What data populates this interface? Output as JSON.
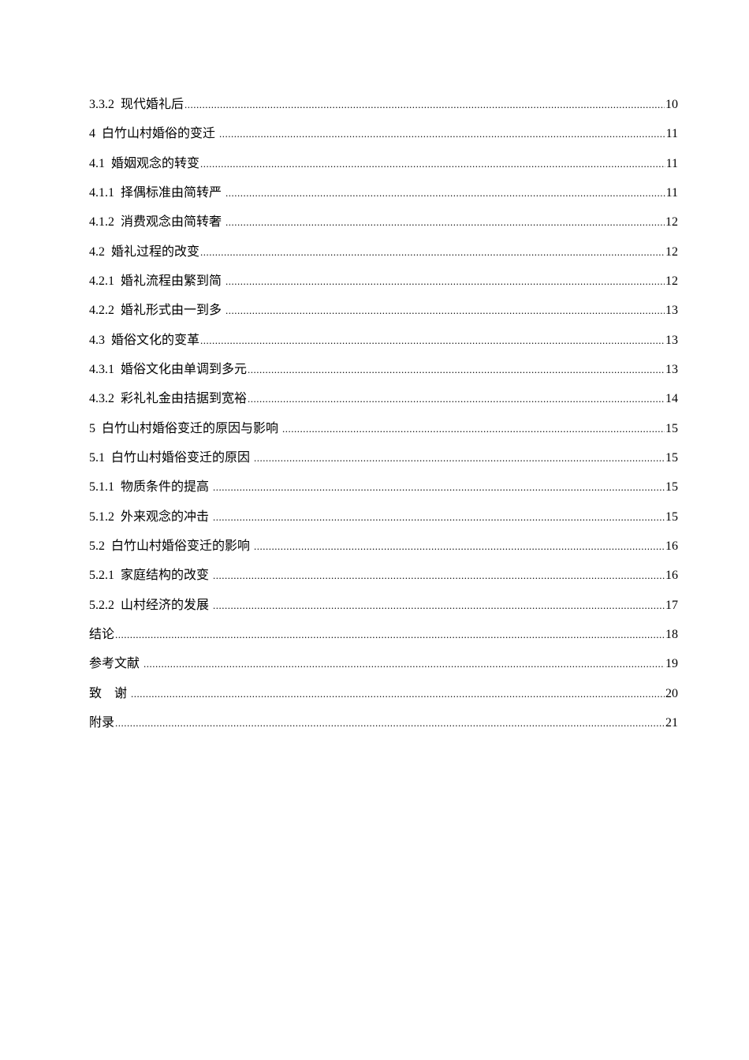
{
  "toc": [
    {
      "title": "3.3.2  现代婚礼后",
      "page": "10"
    },
    {
      "title": "4  白竹山村婚俗的变迁 ",
      "page": "11"
    },
    {
      "title": "4.1  婚姻观念的转变",
      "page": "11"
    },
    {
      "title": "4.1.1  择偶标准由简转严 ",
      "page": "11"
    },
    {
      "title": "4.1.2  消费观念由简转奢 ",
      "page": "12"
    },
    {
      "title": "4.2  婚礼过程的改变",
      "page": "12"
    },
    {
      "title": "4.2.1  婚礼流程由繁到简 ",
      "page": "12"
    },
    {
      "title": "4.2.2  婚礼形式由一到多 ",
      "page": "13"
    },
    {
      "title": "4.3  婚俗文化的变革",
      "page": "13"
    },
    {
      "title": "4.3.1  婚俗文化由单调到多元",
      "page": "13"
    },
    {
      "title": "4.3.2  彩礼礼金由拮据到宽裕",
      "page": "14"
    },
    {
      "title": "5  白竹山村婚俗变迁的原因与影响 ",
      "page": "15"
    },
    {
      "title": "5.1  白竹山村婚俗变迁的原因 ",
      "page": "15"
    },
    {
      "title": "5.1.1  物质条件的提高 ",
      "page": "15"
    },
    {
      "title": "5.1.2  外来观念的冲击 ",
      "page": "15"
    },
    {
      "title": "5.2  白竹山村婚俗变迁的影响 ",
      "page": "16"
    },
    {
      "title": "5.2.1  家庭结构的改变 ",
      "page": "16"
    },
    {
      "title": "5.2.2  山村经济的发展 ",
      "page": "17"
    },
    {
      "title": "结论",
      "page": "18"
    },
    {
      "title": "参考文献 ",
      "page": "19"
    },
    {
      "title": "致    谢 ",
      "page": "20"
    },
    {
      "title": "附录",
      "page": "21"
    }
  ]
}
